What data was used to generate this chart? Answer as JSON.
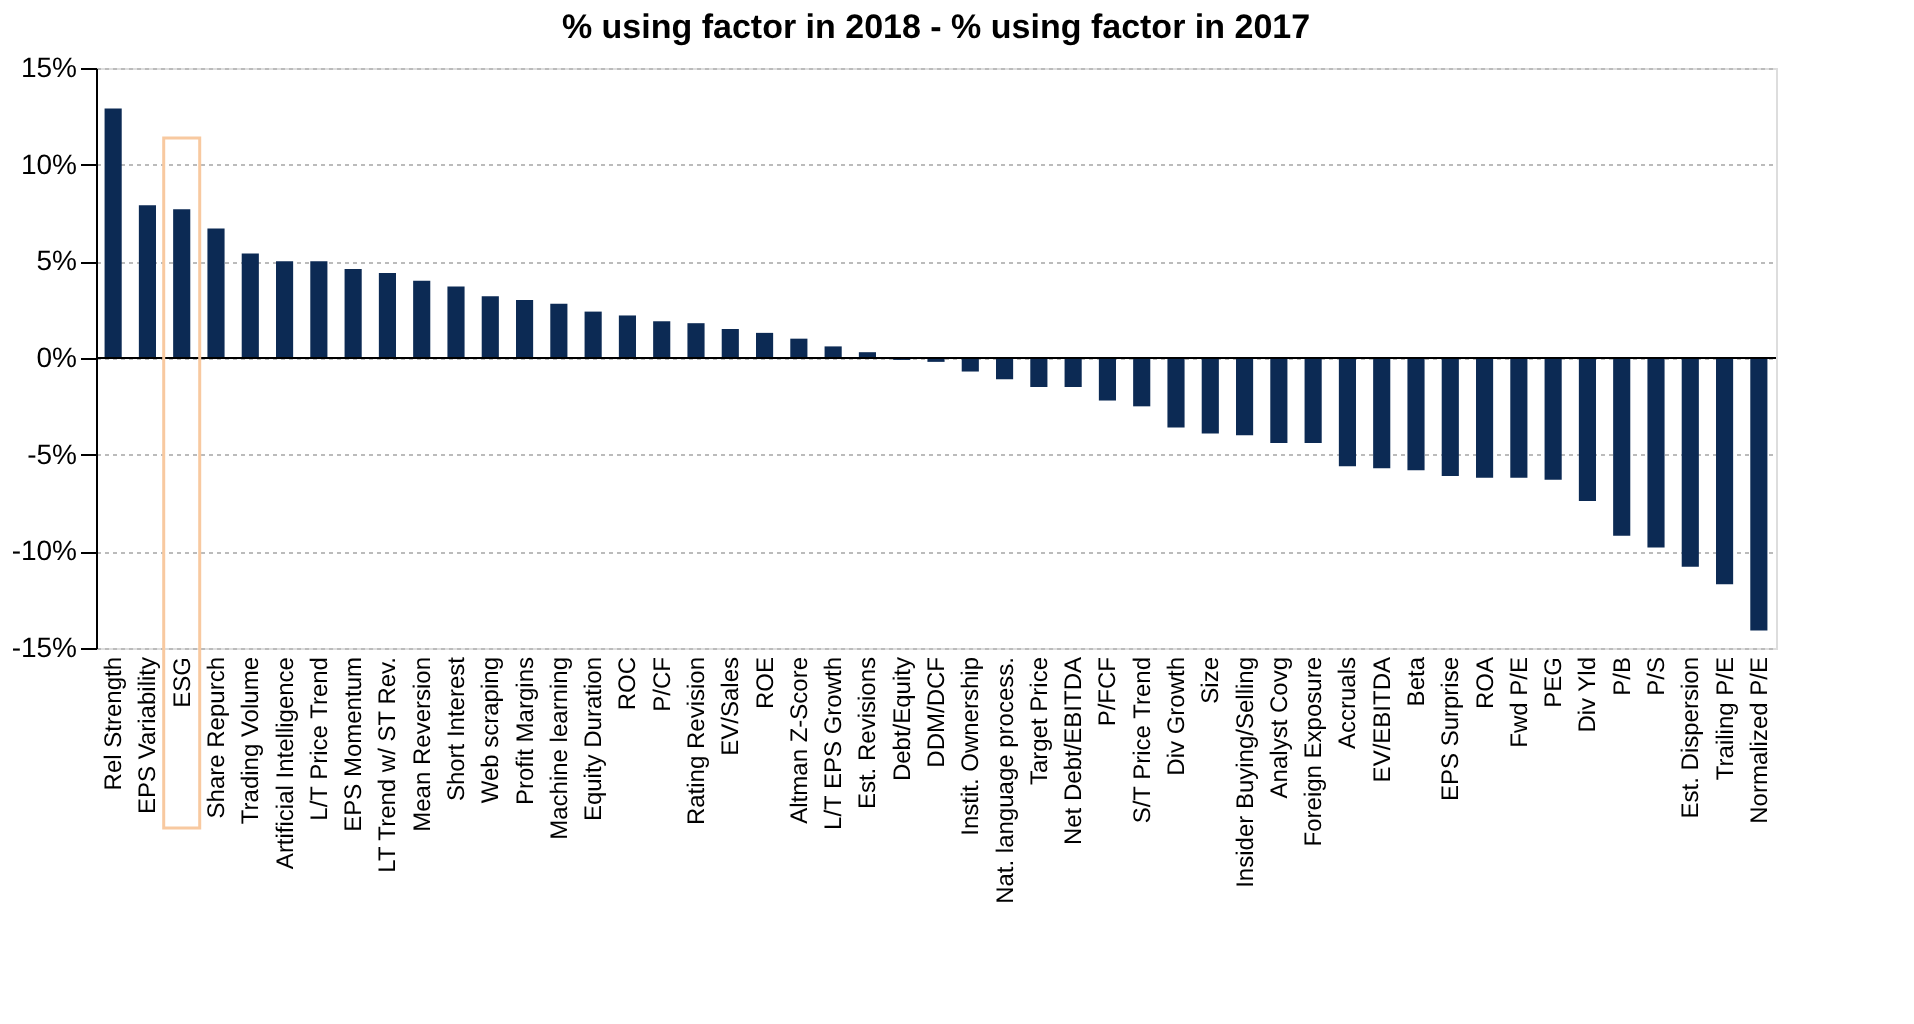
{
  "chart_data": {
    "type": "bar",
    "title": "% using factor in 2018 - % using factor in 2017",
    "categories": [
      "Rel Strength",
      "EPS Variability",
      "ESG",
      "Share Repurch",
      "Trading Volume",
      "Artificial Intelligence",
      "L/T Price Trend",
      "EPS Momentum",
      "LT Trend w/ ST Rev.",
      "Mean Reversion",
      "Short Interest",
      "Web scraping",
      "Profit Margins",
      "Machine learning",
      "Equity Duration",
      "ROC",
      "P/CF",
      "Rating Revision",
      "EV/Sales",
      "ROE",
      "Altman Z-Score",
      "L/T EPS Growth",
      "Est. Revisions",
      "Debt/Equity",
      "DDM/DCF",
      "Instit. Ownership",
      "Nat. language process.",
      "Target Price",
      "Net Debt/EBITDA",
      "P/FCF",
      "S/T Price Trend",
      "Div Growth",
      "Size",
      "Insider Buying/Selling",
      "Analyst Covg",
      "Foreign Exposure",
      "Accruals",
      "EV/EBITDA",
      "Beta",
      "EPS Surprise",
      "ROA",
      "Fwd P/E",
      "PEG",
      "Div Yld",
      "P/B",
      "P/S",
      "Est. Dispersion",
      "Trailing P/E",
      "Normalized P/E"
    ],
    "values": [
      12.9,
      7.9,
      7.7,
      6.7,
      5.4,
      5.0,
      5.0,
      4.6,
      4.4,
      4.0,
      3.7,
      3.2,
      3.0,
      2.8,
      2.4,
      2.2,
      1.9,
      1.8,
      1.5,
      1.3,
      1.0,
      0.6,
      0.3,
      -0.1,
      -0.2,
      -0.7,
      -1.1,
      -1.5,
      -1.5,
      -2.2,
      -2.5,
      -3.6,
      -3.9,
      -4.0,
      -4.4,
      -4.4,
      -5.6,
      -5.7,
      -5.8,
      -6.1,
      -6.2,
      -6.2,
      -6.3,
      -7.4,
      -9.2,
      -9.8,
      -10.8,
      -11.7,
      -14.1
    ],
    "color": "#0c2a54",
    "ylim": [
      -15,
      15
    ],
    "yticks": [
      {
        "value": -15,
        "label": "-15%"
      },
      {
        "value": -10,
        "label": "-10%"
      },
      {
        "value": -5,
        "label": "-5%"
      },
      {
        "value": 0,
        "label": "0%"
      },
      {
        "value": 5,
        "label": "5%"
      },
      {
        "value": 10,
        "label": "10%"
      },
      {
        "value": 15,
        "label": "15%"
      }
    ],
    "grid": "y"
  }
}
